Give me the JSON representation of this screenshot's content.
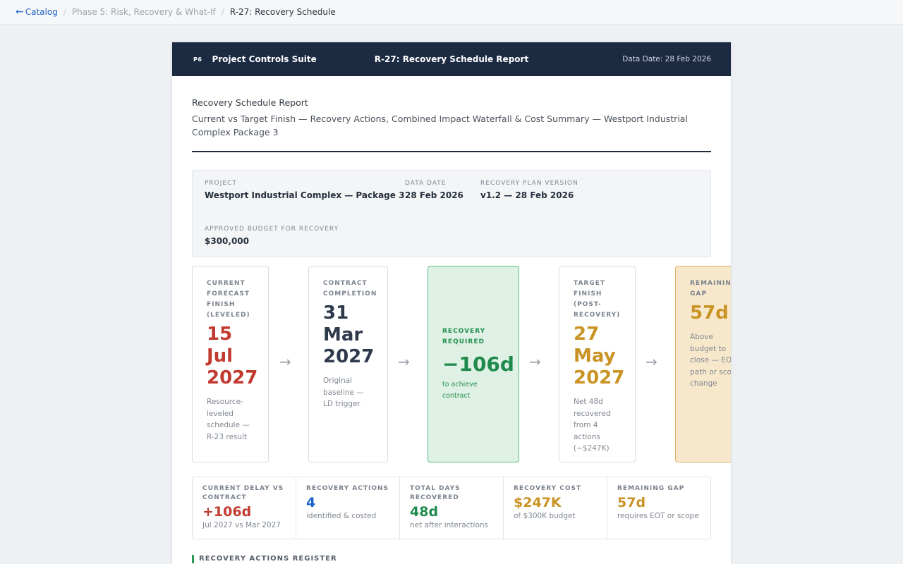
{
  "breadcrumb": {
    "back_label": "Catalog",
    "phase": "Phase 5: Risk, Recovery & What-If",
    "current": "R-27: Recovery Schedule"
  },
  "header": {
    "logo": "P6",
    "suite": "Project Controls Suite",
    "report_title": "R-27: Recovery Schedule Report",
    "data_date": "Data Date: 28 Feb 2026"
  },
  "report": {
    "title": "Recovery Schedule Report",
    "subtitle": "Current vs Target Finish — Recovery Actions, Combined Impact Waterfall & Cost Summary — Westport Industrial Complex Package 3"
  },
  "info": {
    "project_label": "PROJECT",
    "project_value": "Westport Industrial Complex — Package 3",
    "data_date_label": "DATA DATE",
    "data_date_value": "28 Feb 2026",
    "plan_label": "RECOVERY PLAN VERSION",
    "plan_value": "v1.2 — 28 Feb 2026",
    "budget_label": "APPROVED BUDGET FOR RECOVERY",
    "budget_value": "$300,000"
  },
  "flow": {
    "arrow": "→",
    "current": {
      "label": "CURRENT FORECAST FINISH (LEVELED)",
      "value": "15 Jul 2027",
      "note": "Resource-leveled schedule — R-23 result",
      "color": "#c23b31"
    },
    "contract": {
      "label": "CONTRACT COMPLETION",
      "value": "31 Mar 2027",
      "note": "Original baseline — LD trigger",
      "color": "#2e3a4b"
    },
    "required": {
      "label": "RECOVERY REQUIRED",
      "value": "−106d",
      "note": "to achieve contract",
      "color": "#1f8a4c"
    },
    "target": {
      "label": "TARGET FINISH (POST-RECOVERY)",
      "value": "27 May 2027",
      "note": "Net 48d recovered from 4 actions (~$247K)",
      "color": "#c99424"
    },
    "gap": {
      "label": "REMAINING GAP",
      "value": "57d",
      "note": "Above budget to close — EOT path or scope change",
      "color": "#c99424"
    }
  },
  "kpis": [
    {
      "label": "CURRENT DELAY VS CONTRACT",
      "value": "+106d",
      "sub": "Jul 2027 vs Mar 2027",
      "color": "#c23b31"
    },
    {
      "label": "RECOVERY ACTIONS",
      "value": "4",
      "sub": "identified & costed",
      "color": "#1c62c9"
    },
    {
      "label": "TOTAL DAYS RECOVERED",
      "value": "48d",
      "sub": "net after interactions",
      "color": "#1f8a4c"
    },
    {
      "label": "RECOVERY COST",
      "value": "$247K",
      "sub": "of $300K budget",
      "color": "#c99424"
    },
    {
      "label": "REMAINING GAP",
      "value": "57d",
      "sub": "requires EOT or scope",
      "color": "#c99424"
    }
  ],
  "section": {
    "actions_register": "RECOVERY ACTIONS REGISTER"
  }
}
